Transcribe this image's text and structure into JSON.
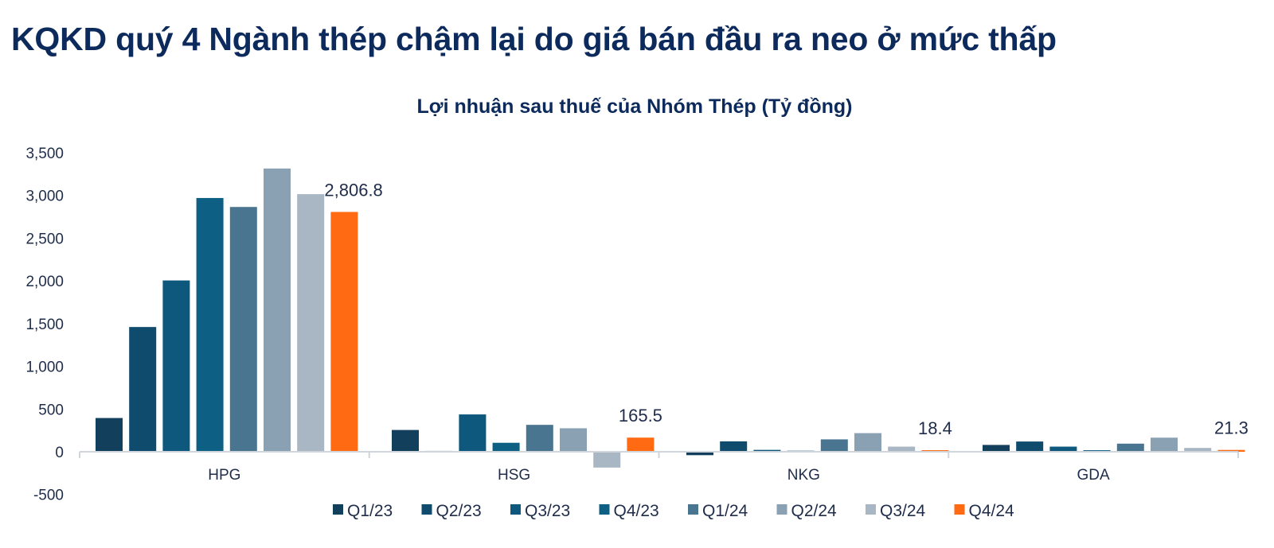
{
  "headline": "KQKD quý 4 Ngành thép chậm lại do giá bán đầu ra neo ở mức thấp",
  "chart_data": {
    "type": "bar",
    "title": "Lợi nhuận sau thuế của Nhóm Thép (Tỷ đồng)",
    "xlabel": "",
    "ylabel": "",
    "ylim": [
      -500,
      3500
    ],
    "yticks": [
      -500,
      0,
      500,
      1000,
      1500,
      2000,
      2500,
      3000,
      3500
    ],
    "ytick_labels": [
      "-500",
      "0",
      "500",
      "1,000",
      "1,500",
      "2,000",
      "2,500",
      "3,000",
      "3,500"
    ],
    "grid": false,
    "legend_position": "bottom",
    "categories": [
      "HPG",
      "HSG",
      "NKG",
      "GDA"
    ],
    "series": [
      {
        "name": "Q1/23",
        "color": "#123f5c",
        "values": [
          395,
          255,
          -40,
          80
        ]
      },
      {
        "name": "Q2/23",
        "color": "#0f4b6d",
        "values": [
          1460,
          10,
          122,
          120
        ]
      },
      {
        "name": "Q3/23",
        "color": "#0d587c",
        "values": [
          2005,
          437,
          22,
          60
        ]
      },
      {
        "name": "Q4/23",
        "color": "#0d5f84",
        "values": [
          2970,
          105,
          12,
          18
        ]
      },
      {
        "name": "Q1/24",
        "color": "#4a7590",
        "values": [
          2865,
          315,
          145,
          95
        ]
      },
      {
        "name": "Q2/24",
        "color": "#8aa0b3",
        "values": [
          3315,
          275,
          218,
          165
        ]
      },
      {
        "name": "Q3/24",
        "color": "#a9b7c4",
        "values": [
          3015,
          -185,
          60,
          45
        ]
      },
      {
        "name": "Q4/24",
        "color": "#ff6a13",
        "values": [
          2806.8,
          165.5,
          18.4,
          21.3
        ]
      }
    ],
    "data_labels": [
      "2,806.8",
      "165.5",
      "18.4",
      "21.3"
    ]
  }
}
